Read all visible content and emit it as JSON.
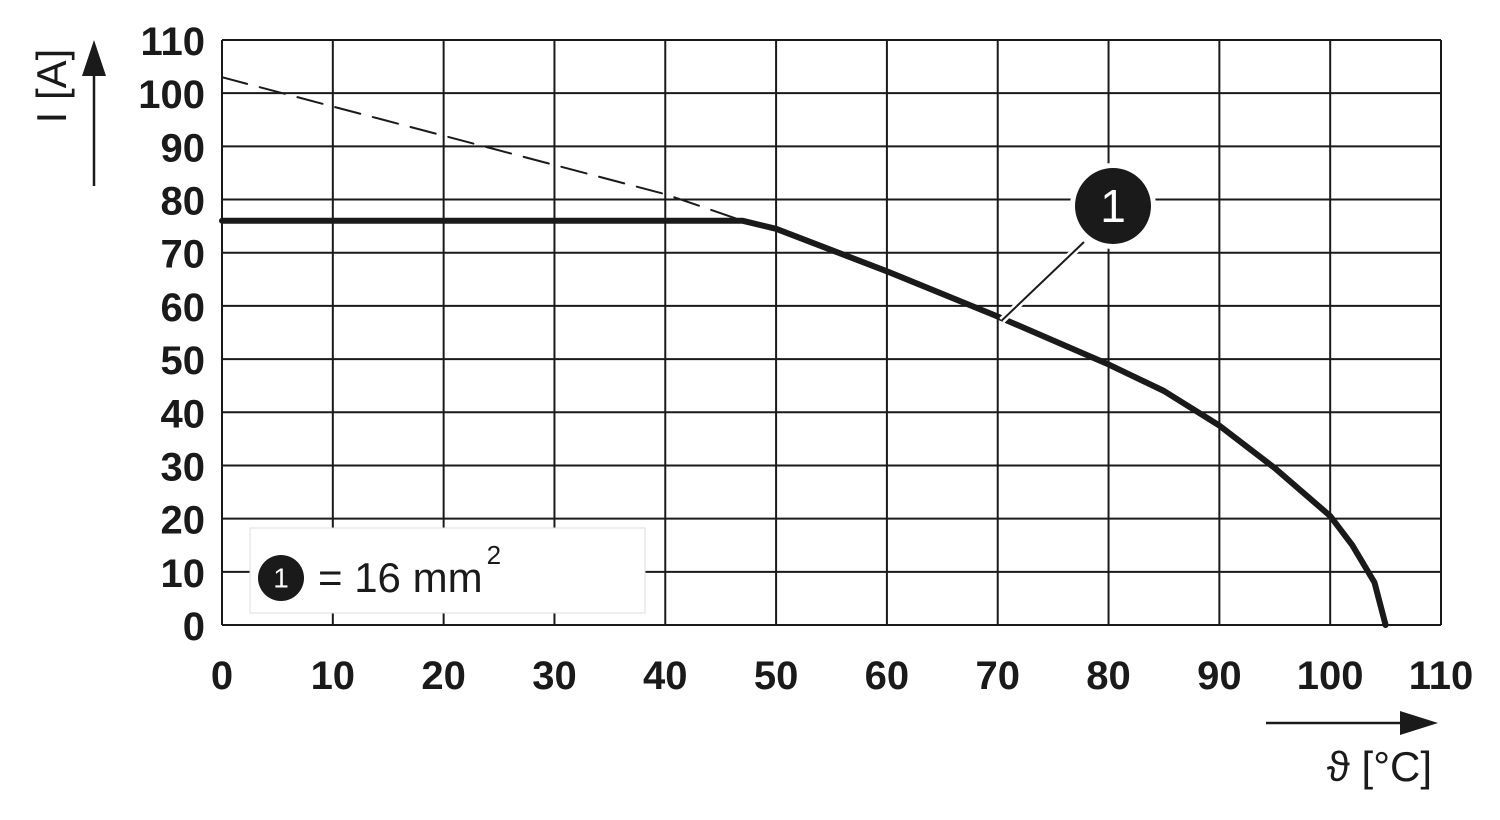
{
  "chart_data": {
    "type": "line",
    "xlabel": "ϑ [°C]",
    "ylabel": "I [A]",
    "xlim": [
      0,
      110
    ],
    "ylim": [
      0,
      110
    ],
    "x_ticks": [
      "0",
      "10",
      "20",
      "30",
      "40",
      "50",
      "60",
      "70",
      "80",
      "90",
      "100",
      "110"
    ],
    "y_ticks": [
      "0",
      "10",
      "20",
      "30",
      "40",
      "50",
      "60",
      "70",
      "80",
      "90",
      "100",
      "110"
    ],
    "grid": true,
    "series": [
      {
        "name": "1",
        "style": "solid",
        "points": [
          [
            0,
            76
          ],
          [
            10,
            76
          ],
          [
            20,
            76
          ],
          [
            30,
            76
          ],
          [
            40,
            76
          ],
          [
            47,
            76
          ],
          [
            50,
            74.5
          ],
          [
            60,
            66.5
          ],
          [
            70,
            58
          ],
          [
            80,
            49
          ],
          [
            85,
            44
          ],
          [
            90,
            37.5
          ],
          [
            95,
            29.5
          ],
          [
            100,
            20.5
          ],
          [
            102,
            15
          ],
          [
            104,
            8
          ],
          [
            105,
            0
          ]
        ]
      },
      {
        "style": "dashed",
        "points": [
          [
            0,
            103
          ],
          [
            10,
            97.5
          ],
          [
            20,
            92
          ],
          [
            30,
            86.5
          ],
          [
            40,
            81
          ],
          [
            47,
            76
          ]
        ]
      }
    ],
    "callout": {
      "label": "1",
      "x": 70,
      "y": 58
    },
    "legend": {
      "marker": "1",
      "text": "= 16 mm",
      "superscript": "2",
      "placement": "bottom-left"
    },
    "colors": {
      "line": "#1a1a1a",
      "grid": "#1a1a1a",
      "badge": "#1a1a1a"
    }
  }
}
